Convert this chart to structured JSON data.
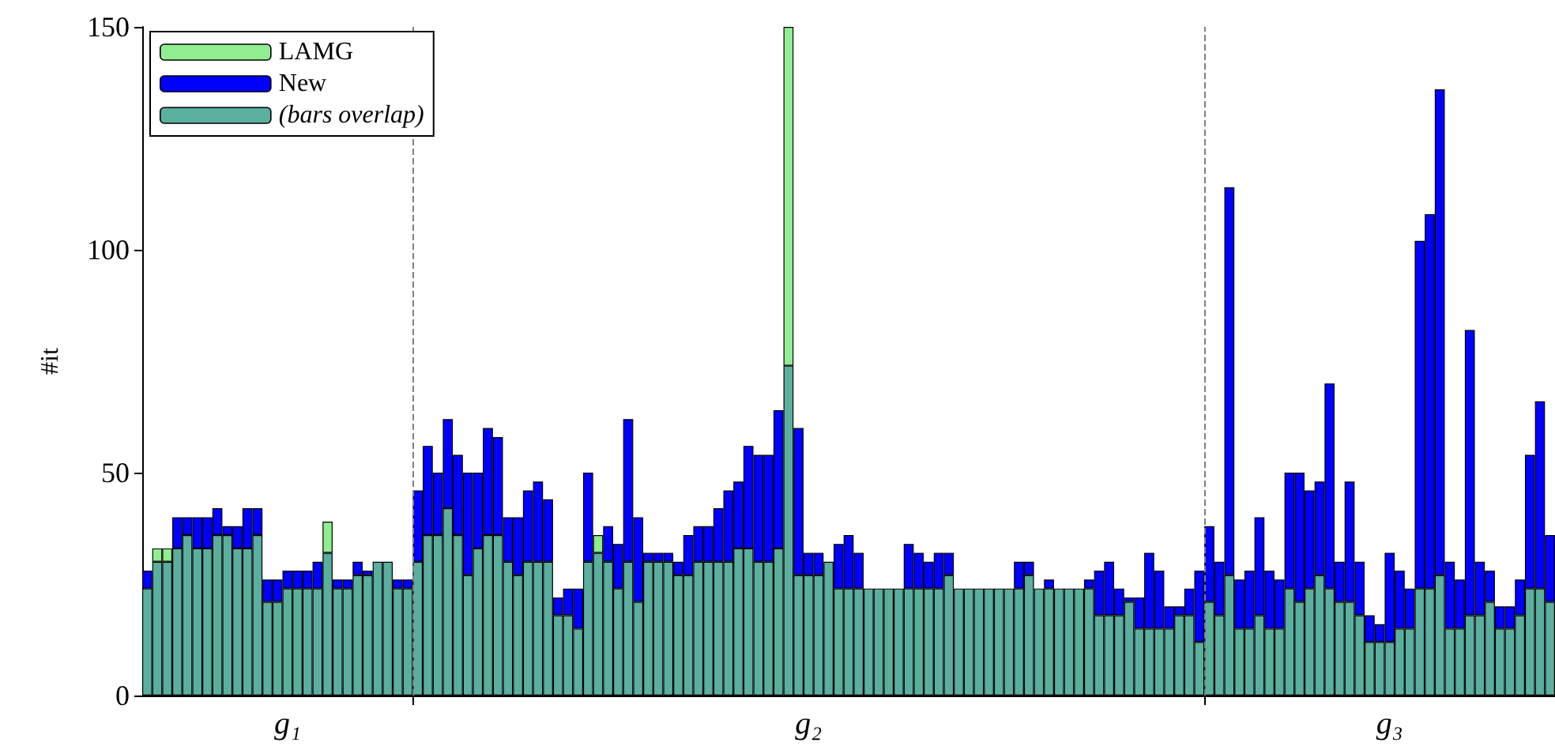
{
  "chart_data": {
    "type": "bar",
    "ylabel": "#it",
    "stacked": true,
    "categories": [
      null,
      null,
      null,
      null,
      null,
      null,
      null,
      null,
      null,
      null,
      null,
      null,
      null,
      null,
      "g₁",
      null,
      null,
      null,
      null,
      null,
      null,
      null,
      null,
      null,
      null,
      null,
      null,
      null,
      null,
      null,
      null,
      null,
      null,
      null,
      null,
      null,
      null,
      null,
      null,
      null,
      null,
      null,
      null,
      null,
      null,
      null,
      null,
      null,
      null,
      null,
      null,
      null,
      null,
      null,
      null,
      null,
      null,
      null,
      null,
      null,
      null,
      null,
      null,
      null,
      null,
      null,
      "g₂",
      null,
      null,
      null,
      null,
      null,
      null,
      null,
      null,
      null,
      null,
      null,
      null,
      null,
      null,
      null,
      null,
      null,
      null,
      null,
      null,
      null,
      null,
      null,
      null,
      null,
      null,
      null,
      null,
      null,
      null,
      null,
      null,
      null,
      null,
      null,
      null,
      null,
      null,
      null,
      null,
      null,
      null,
      null,
      null,
      null,
      null,
      null,
      null,
      null,
      null,
      null,
      null,
      null,
      null,
      null,
      null,
      null,
      "g₃",
      null,
      null,
      null,
      null,
      null,
      null,
      null,
      null,
      null,
      null,
      null,
      null,
      null,
      null,
      null,
      null
    ],
    "series": [
      {
        "name": "(bars overlap)",
        "color": "#5aaf9f",
        "values": [
          24,
          30,
          30,
          33,
          36,
          33,
          33,
          36,
          36,
          33,
          33,
          36,
          21,
          21,
          24,
          24,
          24,
          24,
          32,
          24,
          24,
          27,
          27,
          30,
          30,
          24,
          24,
          30,
          36,
          36,
          42,
          36,
          27,
          33,
          36,
          36,
          30,
          27,
          30,
          30,
          30,
          18,
          18,
          15,
          30,
          32,
          30,
          24,
          30,
          21,
          30,
          30,
          30,
          27,
          27,
          30,
          30,
          30,
          30,
          33,
          33,
          30,
          30,
          33,
          74,
          27,
          27,
          27,
          30,
          24,
          24,
          24,
          24,
          24,
          24,
          24,
          24,
          24,
          24,
          24,
          27,
          24,
          24,
          24,
          24,
          24,
          24,
          24,
          27,
          24,
          24,
          24,
          24,
          24,
          24,
          18,
          18,
          18,
          21,
          15,
          15,
          15,
          15,
          18,
          18,
          12,
          21,
          18,
          27,
          15,
          15,
          18,
          15,
          15,
          24,
          21,
          24,
          27,
          24,
          21,
          21,
          18,
          12,
          12,
          12,
          15,
          15,
          24,
          24,
          27,
          15,
          15,
          18,
          18,
          21,
          15,
          15,
          18,
          24,
          24,
          21
        ]
      },
      {
        "name": "LAMG",
        "color": "#90ee90",
        "values": [
          0,
          3,
          3,
          0,
          0,
          0,
          0,
          0,
          0,
          0,
          0,
          0,
          0,
          0,
          0,
          0,
          0,
          0,
          7,
          0,
          0,
          0,
          0,
          0,
          0,
          0,
          0,
          0,
          0,
          0,
          0,
          0,
          0,
          0,
          0,
          0,
          0,
          0,
          0,
          0,
          0,
          0,
          0,
          0,
          0,
          4,
          0,
          0,
          0,
          0,
          0,
          0,
          0,
          0,
          0,
          0,
          0,
          0,
          0,
          0,
          0,
          0,
          0,
          0,
          76,
          0,
          0,
          0,
          0,
          0,
          0,
          0,
          0,
          0,
          0,
          0,
          0,
          0,
          0,
          0,
          0,
          0,
          0,
          0,
          0,
          0,
          0,
          0,
          0,
          0,
          0,
          0,
          0,
          0,
          0,
          0,
          0,
          0,
          0,
          0,
          0,
          0,
          0,
          0,
          0,
          0,
          0,
          0,
          0,
          0,
          0,
          0,
          0,
          0,
          0,
          0,
          0,
          0,
          0,
          0,
          0,
          0,
          0,
          0,
          0,
          0,
          0,
          0,
          0,
          0,
          0,
          0,
          0,
          0,
          0,
          0,
          0,
          0,
          0,
          0,
          0
        ]
      },
      {
        "name": "New",
        "color": "#0000ff",
        "values": [
          4,
          0,
          0,
          7,
          4,
          7,
          7,
          6,
          2,
          5,
          9,
          6,
          5,
          5,
          4,
          4,
          4,
          6,
          0,
          2,
          2,
          3,
          1,
          0,
          0,
          2,
          2,
          16,
          20,
          14,
          20,
          18,
          23,
          17,
          24,
          22,
          10,
          13,
          16,
          18,
          14,
          4,
          6,
          9,
          20,
          0,
          8,
          10,
          32,
          19,
          2,
          2,
          2,
          3,
          9,
          8,
          8,
          12,
          16,
          15,
          23,
          24,
          24,
          31,
          0,
          33,
          5,
          5,
          0,
          10,
          12,
          8,
          0,
          0,
          0,
          0,
          10,
          8,
          6,
          8,
          5,
          0,
          0,
          0,
          0,
          0,
          0,
          6,
          3,
          0,
          2,
          0,
          0,
          0,
          2,
          10,
          12,
          6,
          1,
          7,
          17,
          13,
          5,
          2,
          6,
          16,
          17,
          12,
          87,
          11,
          13,
          22,
          13,
          11,
          26,
          29,
          22,
          21,
          46,
          9,
          27,
          12,
          6,
          4,
          20,
          13,
          9,
          78,
          84,
          109,
          15,
          11,
          64,
          12,
          7,
          5,
          5,
          8,
          30,
          42,
          15
        ]
      }
    ],
    "ylim": [
      0,
      150
    ],
    "yticks": [
      0,
      50,
      100,
      150
    ],
    "legend": "top left",
    "grid": false
  }
}
